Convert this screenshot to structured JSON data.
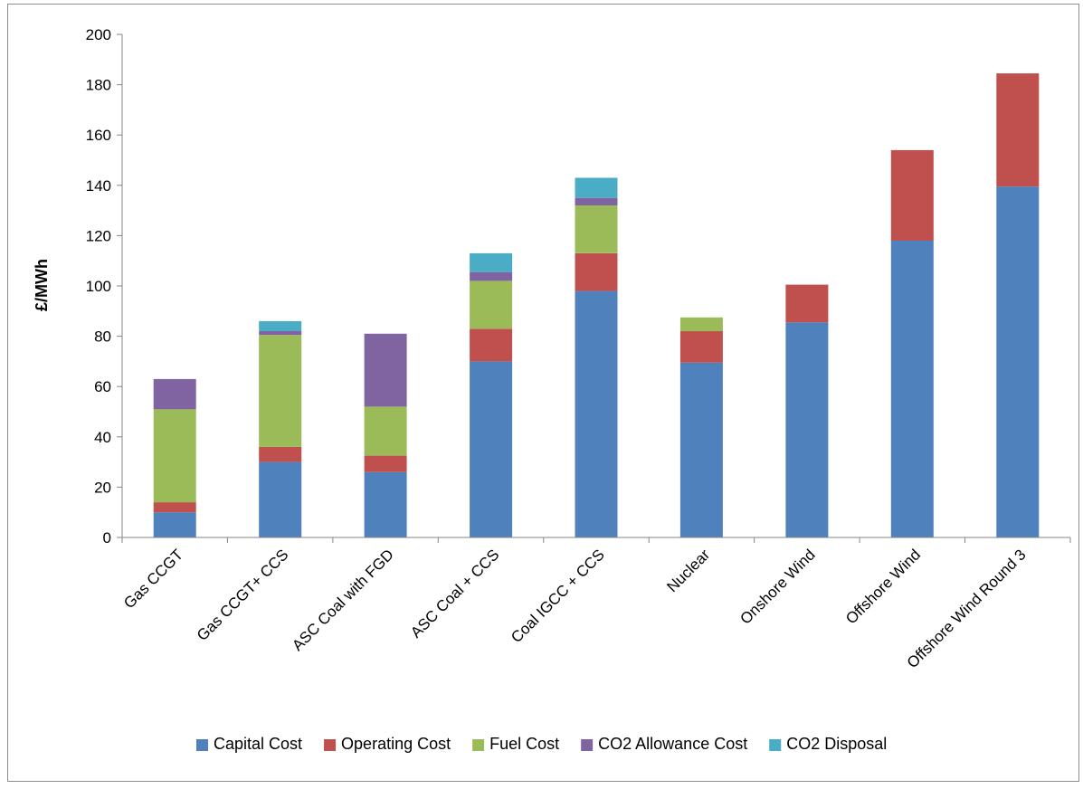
{
  "chart_data": {
    "type": "bar",
    "stacked": true,
    "title": "",
    "xlabel": "",
    "ylabel": "£/MWh",
    "ylim": [
      0,
      200
    ],
    "yticks": [
      0,
      20,
      40,
      60,
      80,
      100,
      120,
      140,
      160,
      180,
      200
    ],
    "grid": false,
    "legend_position": "bottom",
    "categories": [
      "Gas CCGT",
      "Gas CCGT+ CCS",
      "ASC Coal with FGD",
      "ASC Coal + CCS",
      "Coal IGCC + CCS",
      "Nuclear",
      "Onshore Wind",
      "Offshore Wind",
      "Offshore Wind Round 3"
    ],
    "series": [
      {
        "name": "Capital Cost",
        "color": "#4f81bd",
        "values": [
          10,
          30,
          26,
          70,
          98,
          69.5,
          85.5,
          118,
          139.5
        ]
      },
      {
        "name": "Operating Cost",
        "color": "#c0504d",
        "values": [
          4,
          6,
          6.5,
          13,
          15,
          12.5,
          15,
          36,
          45
        ]
      },
      {
        "name": "Fuel Cost",
        "color": "#9bbb59",
        "values": [
          37,
          44.5,
          19.5,
          19,
          19,
          5.5,
          0,
          0,
          0
        ]
      },
      {
        "name": "CO2 Allowance Cost",
        "color": "#8064a2",
        "values": [
          12,
          1.5,
          29,
          3.5,
          3,
          0,
          0,
          0,
          0
        ]
      },
      {
        "name": "CO2 Disposal",
        "color": "#4bacc6",
        "values": [
          0,
          4,
          0,
          7.5,
          8,
          0,
          0,
          0,
          0
        ]
      }
    ]
  }
}
